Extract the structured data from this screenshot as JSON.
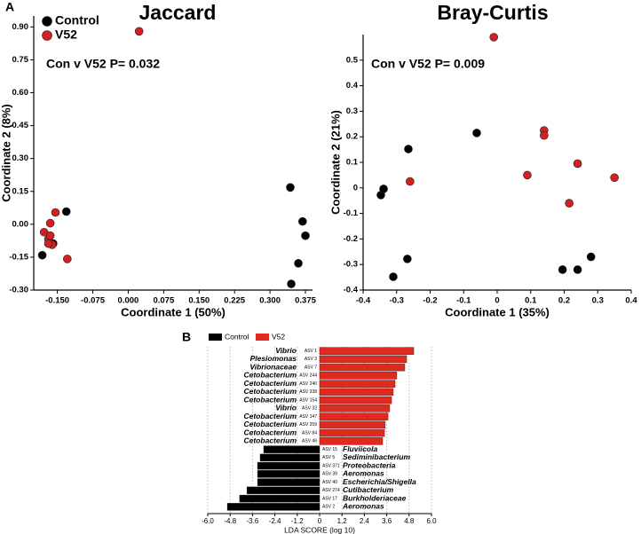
{
  "chart_data": [
    {
      "type": "scatter",
      "panel_label": "A",
      "title": "Jaccard",
      "annotation": "Con v V52 P= 0.032",
      "xlabel": "Coordinate 1 (50%)",
      "ylabel": "Coordinate 2 (8%)",
      "legend": true,
      "xlim": [
        -0.2,
        0.39
      ],
      "ylim": [
        -0.3,
        0.95
      ],
      "xticks": [
        {
          "value": -0.15,
          "label": "-0.150"
        },
        {
          "value": -0.075,
          "label": "-0.075"
        },
        {
          "value": 0,
          "label": "0.000"
        },
        {
          "value": 0.075,
          "label": "0.075"
        },
        {
          "value": 0.15,
          "label": "0.150"
        },
        {
          "value": 0.225,
          "label": "0.225"
        },
        {
          "value": 0.3,
          "label": "0.300"
        },
        {
          "value": 0.375,
          "label": "0.375"
        }
      ],
      "yticks": [
        {
          "value": -0.3,
          "label": "-0.30"
        },
        {
          "value": -0.15,
          "label": "-0.15"
        },
        {
          "value": 0,
          "label": "0.00"
        },
        {
          "value": 0.15,
          "label": "0.15"
        },
        {
          "value": 0.3,
          "label": "0.30"
        },
        {
          "value": 0.45,
          "label": "0.45"
        },
        {
          "value": 0.6,
          "label": "0.60"
        },
        {
          "value": 0.75,
          "label": "0.75"
        },
        {
          "value": 0.9,
          "label": "0.90"
        }
      ],
      "series": [
        {
          "name": "Control",
          "color": "#000000",
          "x": [
            -0.182,
            -0.131,
            -0.159,
            0.343,
            0.369,
            0.375,
            0.36,
            0.345
          ],
          "values": [
            -0.141,
            0.058,
            -0.088,
            0.168,
            0.013,
            -0.052,
            -0.178,
            -0.272
          ]
        },
        {
          "name": "V52",
          "color": "#d42020",
          "x": [
            0.023,
            -0.154,
            -0.165,
            -0.178,
            -0.169,
            -0.165,
            -0.161,
            -0.129,
            -0.169
          ],
          "values": [
            0.88,
            0.054,
            0.005,
            -0.036,
            -0.068,
            -0.052,
            -0.093,
            -0.158,
            -0.088
          ]
        }
      ]
    },
    {
      "type": "scatter",
      "title": "Bray-Curtis",
      "annotation": "Con v V52 P= 0.009",
      "xlabel": "Coordinate 1 (35%)",
      "ylabel": "Coordinate 2 (21%)",
      "legend": false,
      "xlim": [
        -0.4,
        0.4
      ],
      "ylim": [
        -0.4,
        0.6
      ],
      "xticks": [
        -0.4,
        -0.3,
        -0.2,
        -0.1,
        0,
        0.1,
        0.2,
        0.3,
        0.4
      ],
      "yticks": [
        -0.4,
        -0.3,
        -0.2,
        -0.1,
        0,
        0.1,
        0.2,
        0.3,
        0.4,
        0.5
      ],
      "series": [
        {
          "name": "Control",
          "color": "#000000",
          "x": [
            -0.347,
            -0.339,
            -0.265,
            -0.061,
            -0.268,
            -0.31,
            0.195,
            0.24,
            0.28
          ],
          "values": [
            -0.028,
            -0.004,
            0.152,
            0.215,
            -0.278,
            -0.348,
            -0.32,
            -0.32,
            -0.27
          ]
        },
        {
          "name": "V52",
          "color": "#d42020",
          "x": [
            -0.01,
            0.14,
            0.14,
            0.09,
            0.24,
            0.215,
            0.35,
            -0.26
          ],
          "values": [
            0.59,
            0.225,
            0.205,
            0.05,
            0.095,
            -0.06,
            0.04,
            0.025
          ]
        }
      ]
    },
    {
      "type": "hbar",
      "panel_label": "B",
      "xlabel": "LDA SCORE (log 10)",
      "xlim": [
        -6,
        6
      ],
      "xticks": [
        {
          "value": -6,
          "label": "-6.0"
        },
        {
          "value": -4.8,
          "label": "-4.8"
        },
        {
          "value": -3.6,
          "label": "-3.6"
        },
        {
          "value": -2.4,
          "label": "-2.4"
        },
        {
          "value": -1.2,
          "label": "-1.2"
        },
        0,
        {
          "value": 1.2,
          "label": "1.2"
        },
        {
          "value": 2.4,
          "label": "2.4"
        },
        {
          "value": 3.6,
          "label": "3.6"
        },
        {
          "value": 4.8,
          "label": "4.8"
        },
        {
          "value": 6,
          "label": "6.0"
        }
      ],
      "grid": true,
      "categories": [
        "Vibrio",
        "Plesiomonas",
        "Vibrionaceae",
        "Cetobacterium",
        "Cetobacterium",
        "Cetobacterium",
        "Cetobacterium",
        "Vibrio",
        "Cetobacterium",
        "Cetobacterium",
        "Cetobacterium",
        "Cetobacterium",
        "Fluviicola",
        "Sediminibacterium",
        "Proteobacteria",
        "Aeromonas",
        "Escherichia/Shigella",
        "Cutibacterium",
        "Burkholderiaceae",
        "Aeromonas"
      ],
      "asv_labels": [
        "ASV 1",
        "ASV 3",
        "ASV 7",
        "ASV 244",
        "ASV 240",
        "ASV 338",
        "ASV 154",
        "ASV 32",
        "ASV 147",
        "ASV 259",
        "ASV 84",
        "ASV 46",
        "ASV 15",
        "ASV 5",
        "ASV 371",
        "ASV 39",
        "ASV 40",
        "ASV 274",
        "ASV 17",
        "ASV 2"
      ],
      "series": [
        {
          "name": "Control",
          "color": "#000000",
          "values": [
            null,
            null,
            null,
            null,
            null,
            null,
            null,
            null,
            null,
            null,
            null,
            null,
            -3.0,
            -3.19,
            -3.33,
            -3.33,
            -3.33,
            -3.9,
            -4.29,
            -4.95
          ]
        },
        {
          "name": "V52",
          "color": "#e02a1f",
          "values": [
            5.05,
            4.67,
            4.57,
            4.14,
            4.05,
            3.95,
            3.86,
            3.76,
            3.67,
            3.52,
            3.48,
            3.38,
            null,
            null,
            null,
            null,
            null,
            null,
            null,
            null
          ]
        }
      ]
    }
  ]
}
